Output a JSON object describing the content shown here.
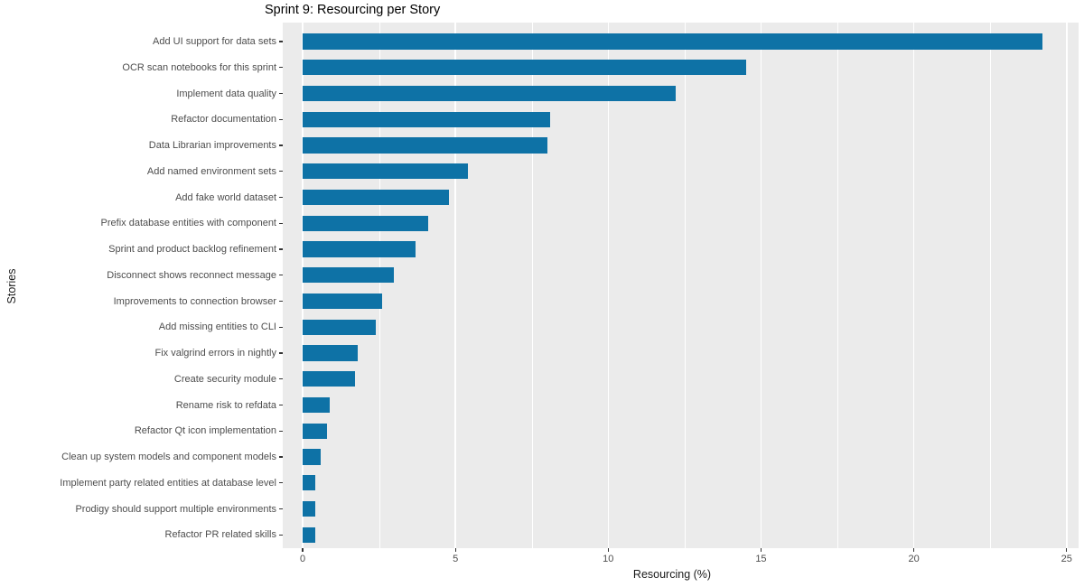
{
  "chart_data": {
    "type": "bar",
    "orientation": "horizontal",
    "title": "Sprint 9: Resourcing per Story",
    "xlabel": "Resourcing (%)",
    "ylabel": "Stories",
    "categories": [
      "Add UI support for data sets",
      "OCR scan notebooks for this sprint",
      "Implement data quality",
      "Refactor documentation",
      "Data Librarian improvements",
      "Add named environment sets",
      "Add fake world dataset",
      "Prefix database entities with component",
      "Sprint and product backlog refinement",
      "Disconnect shows reconnect message",
      "Improvements to connection browser",
      "Add missing entities to CLI",
      "Fix valgrind errors in nightly",
      "Create security module",
      "Rename risk to refdata",
      "Refactor Qt icon implementation",
      "Clean up system models and component models",
      "Implement party related entities at database level",
      "Prodigy should support multiple environments",
      "Refactor PR related skills"
    ],
    "values": [
      24.2,
      14.5,
      12.2,
      8.1,
      8.0,
      5.4,
      4.8,
      4.1,
      3.7,
      3.0,
      2.6,
      2.4,
      1.8,
      1.7,
      0.9,
      0.8,
      0.6,
      0.4,
      0.4,
      0.4
    ],
    "xlim": [
      0,
      25
    ],
    "x_major_ticks": [
      0,
      5,
      10,
      15,
      20,
      25
    ],
    "x_tick_labels": [
      "0",
      "5",
      "10",
      "15",
      "20",
      "25"
    ],
    "x_minor_gridlines": [
      2.5,
      7.5,
      12.5,
      17.5,
      22.5
    ],
    "grid": "major-and-minor-vertical",
    "legend": "none",
    "colors": {
      "bar": "#0E72A6",
      "panel_background": "#EBEBEB",
      "gridline": "#FFFFFF",
      "tick_label": "#4D4D4D",
      "axis_title": "#1A1A1A",
      "tick_mark": "#333333",
      "title": "#000000",
      "figure_background": "#FFFFFF"
    }
  }
}
